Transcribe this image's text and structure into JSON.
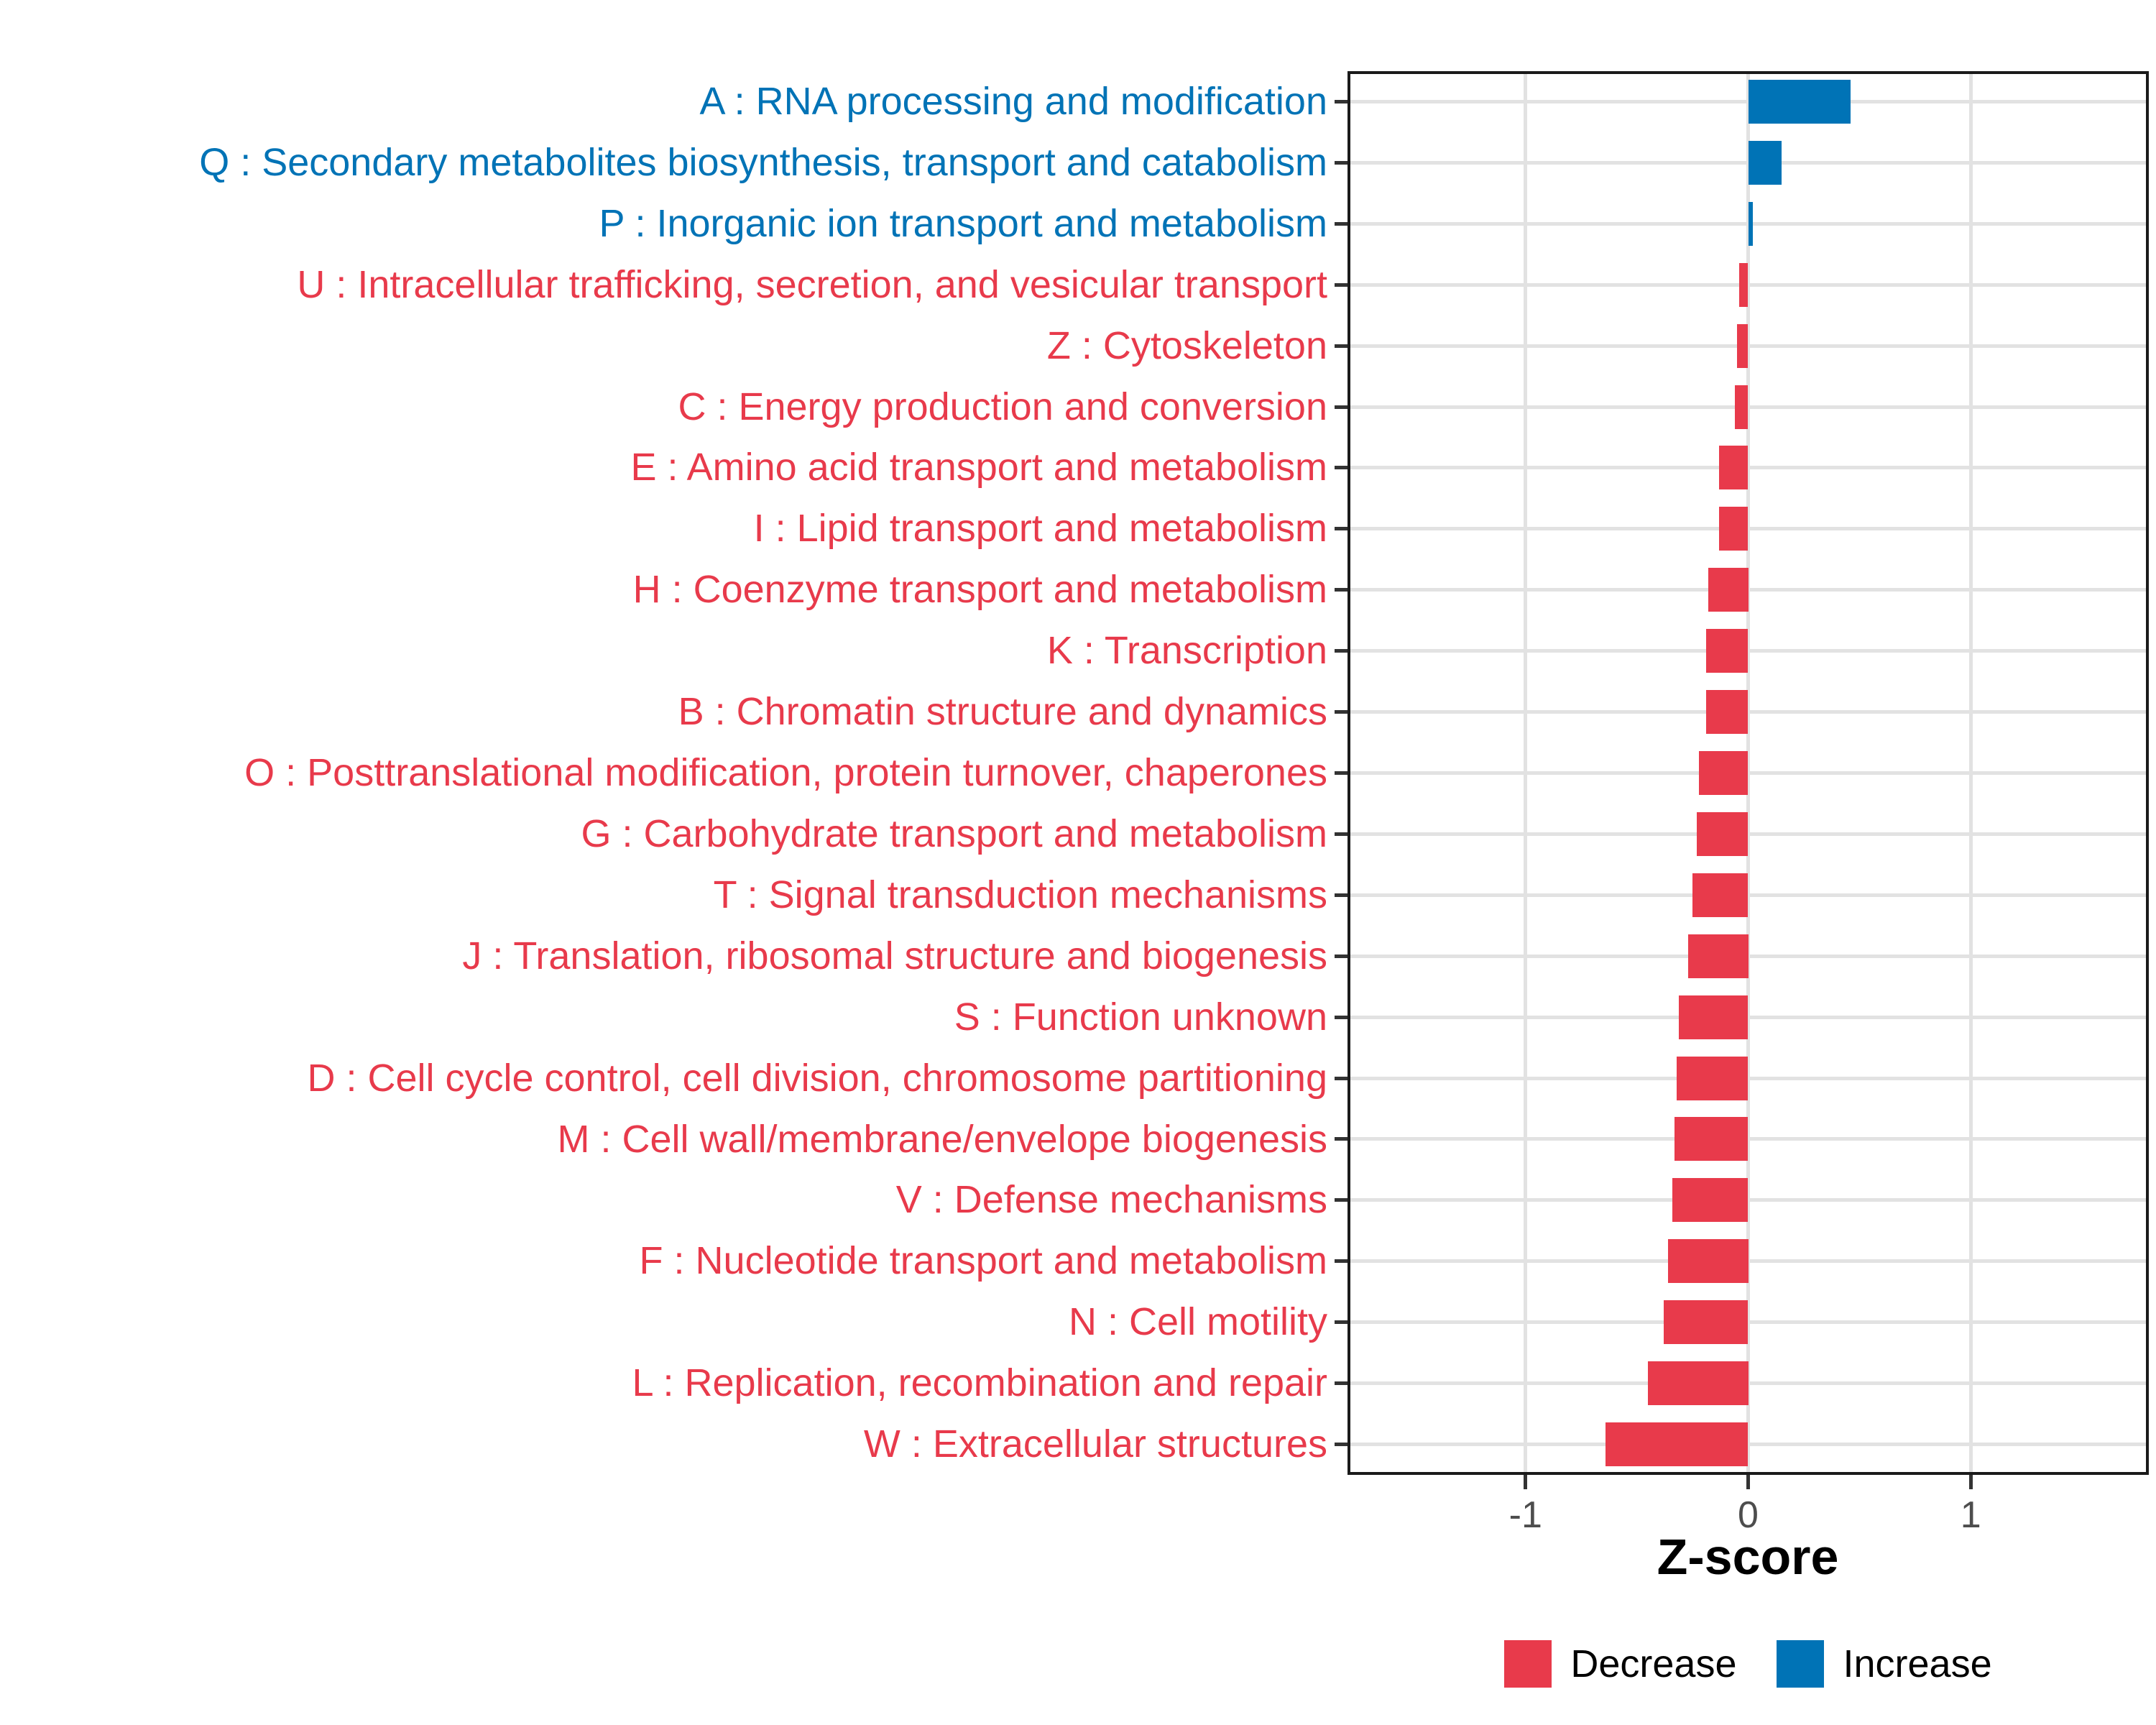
{
  "chart_data": {
    "type": "bar",
    "orientation": "horizontal",
    "title": "",
    "xlabel": "Z-score",
    "ylabel": "",
    "xlim": [
      -1.8,
      1.8
    ],
    "xticks": [
      {
        "value": -1,
        "label": "-1"
      },
      {
        "value": 0,
        "label": "0"
      },
      {
        "value": 1,
        "label": "1"
      }
    ],
    "grid": true,
    "legend_position": "bottom",
    "categories": [
      {
        "code": "A",
        "label": "A : RNA processing and modification",
        "value": 0.46,
        "direction": "increase"
      },
      {
        "code": "Q",
        "label": "Q : Secondary metabolites biosynthesis, transport and catabolism",
        "value": 0.15,
        "direction": "increase"
      },
      {
        "code": "P",
        "label": "P : Inorganic ion transport and metabolism",
        "value": 0.02,
        "direction": "increase"
      },
      {
        "code": "U",
        "label": "U : Intracellular trafficking, secretion, and vesicular transport",
        "value": -0.04,
        "direction": "decrease"
      },
      {
        "code": "Z",
        "label": "Z : Cytoskeleton",
        "value": -0.05,
        "direction": "decrease"
      },
      {
        "code": "C",
        "label": "C : Energy production and conversion",
        "value": -0.06,
        "direction": "decrease"
      },
      {
        "code": "E",
        "label": "E : Amino acid transport and metabolism",
        "value": -0.13,
        "direction": "decrease"
      },
      {
        "code": "I",
        "label": "I : Lipid transport and metabolism",
        "value": -0.13,
        "direction": "decrease"
      },
      {
        "code": "H",
        "label": "H : Coenzyme transport and metabolism",
        "value": -0.18,
        "direction": "decrease"
      },
      {
        "code": "K",
        "label": "K : Transcription",
        "value": -0.19,
        "direction": "decrease"
      },
      {
        "code": "B",
        "label": "B : Chromatin structure and dynamics",
        "value": -0.19,
        "direction": "decrease"
      },
      {
        "code": "O",
        "label": "O : Posttranslational modification, protein turnover, chaperones",
        "value": -0.22,
        "direction": "decrease"
      },
      {
        "code": "G",
        "label": "G : Carbohydrate transport and metabolism",
        "value": -0.23,
        "direction": "decrease"
      },
      {
        "code": "T",
        "label": "T : Signal transduction mechanisms",
        "value": -0.25,
        "direction": "decrease"
      },
      {
        "code": "J",
        "label": "J : Translation, ribosomal structure and biogenesis",
        "value": -0.27,
        "direction": "decrease"
      },
      {
        "code": "S",
        "label": "S : Function unknown",
        "value": -0.31,
        "direction": "decrease"
      },
      {
        "code": "D",
        "label": "D : Cell cycle control, cell division, chromosome partitioning",
        "value": -0.32,
        "direction": "decrease"
      },
      {
        "code": "M",
        "label": "M : Cell wall/membrane/envelope biogenesis",
        "value": -0.33,
        "direction": "decrease"
      },
      {
        "code": "V",
        "label": "V : Defense mechanisms",
        "value": -0.34,
        "direction": "decrease"
      },
      {
        "code": "F",
        "label": "F : Nucleotide transport and metabolism",
        "value": -0.36,
        "direction": "decrease"
      },
      {
        "code": "N",
        "label": "N : Cell motility",
        "value": -0.38,
        "direction": "decrease"
      },
      {
        "code": "L",
        "label": "L : Replication, recombination and repair",
        "value": -0.45,
        "direction": "decrease"
      },
      {
        "code": "W",
        "label": "W : Extracellular structures",
        "value": -0.64,
        "direction": "decrease"
      }
    ],
    "legend": [
      {
        "label": "Decrease",
        "color": "#E83A4B"
      },
      {
        "label": "Increase",
        "color": "#0073B6"
      }
    ],
    "colors": {
      "increase": "#0073B6",
      "decrease": "#E83A4B",
      "grid": "#E2E2E2",
      "panel_border": "#1A1A1A",
      "axis_text": "#4D4D4D"
    }
  }
}
